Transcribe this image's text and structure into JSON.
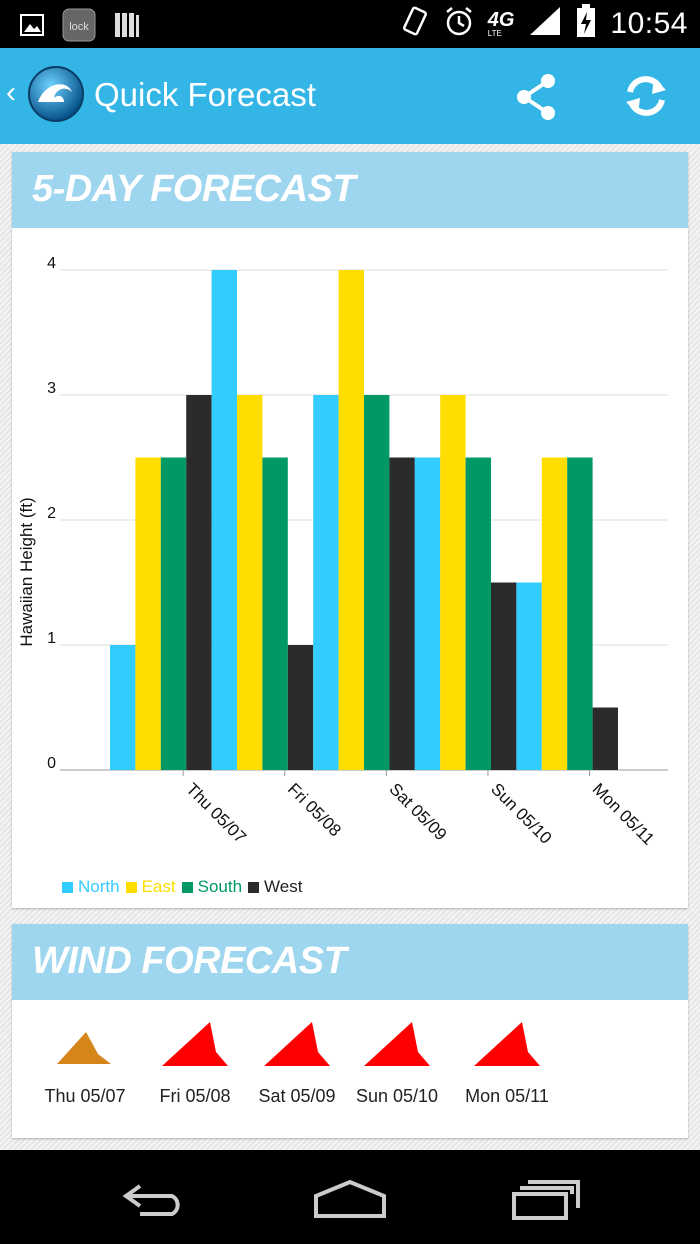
{
  "status_bar": {
    "time": "10:54",
    "network": "4G",
    "network_sub": "LTE",
    "icons": [
      "gallery-icon",
      "lock-app-icon",
      "library-icon",
      "vibrate-icon",
      "alarm-icon",
      "signal-icon",
      "battery-charging-icon"
    ]
  },
  "action_bar": {
    "title": "Quick Forecast",
    "back_glyph": "‹",
    "colors": {
      "accent": "#33b5e5"
    }
  },
  "forecast": {
    "title": "5-DAY FORECAST",
    "chart_data": {
      "type": "bar",
      "categories": [
        "Thu 05/07",
        "Fri 05/08",
        "Sat 05/09",
        "Sun 05/10",
        "Mon 05/11"
      ],
      "series": [
        {
          "name": "North",
          "color": "#33ccff",
          "values": [
            1,
            4,
            3,
            2.5,
            1.5
          ]
        },
        {
          "name": "East",
          "color": "#ffdd00",
          "values": [
            2.5,
            3,
            4,
            3,
            2.5
          ]
        },
        {
          "name": "South",
          "color": "#009966",
          "values": [
            2.5,
            2.5,
            3,
            2.5,
            2.5
          ]
        },
        {
          "name": "West",
          "color": "#2b2b2b",
          "values": [
            3,
            1,
            2.5,
            1.5,
            0.5
          ]
        }
      ],
      "ylabel": "Hawaiian Height (ft)",
      "xlabel": "",
      "ylim": [
        0,
        4
      ],
      "yticks": [
        "0",
        "1",
        "2",
        "3",
        "4"
      ],
      "grid": true,
      "legend": "bottom-left"
    }
  },
  "wind": {
    "title": "WIND FORECAST",
    "days": [
      {
        "label": "Thu 05/07",
        "color": "#d4861a",
        "icon": "wind-direction-icon"
      },
      {
        "label": "Fri 05/08",
        "color": "#ff0000",
        "icon": "wind-direction-icon"
      },
      {
        "label": "Sat 05/09",
        "color": "#ff0000",
        "icon": "wind-direction-icon"
      },
      {
        "label": "Sun 05/10",
        "color": "#ff0000",
        "icon": "wind-direction-icon"
      },
      {
        "label": "Mon 05/11",
        "color": "#ff0000",
        "icon": "wind-direction-icon"
      }
    ]
  },
  "nav_bar": {
    "buttons": [
      "back-icon",
      "home-icon",
      "recents-icon"
    ]
  }
}
